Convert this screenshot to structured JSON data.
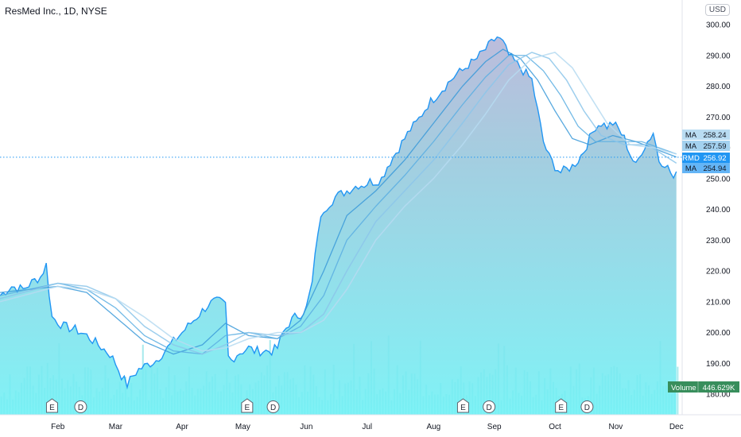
{
  "chart_data": {
    "type": "area",
    "title": "ResMed Inc., 1D, NYSE",
    "currency": "USD",
    "ylim": [
      176,
      302
    ],
    "y_ticks": [
      "180.00",
      "190.00",
      "200.00",
      "210.00",
      "220.00",
      "230.00",
      "240.00",
      "250.00",
      "260.00",
      "270.00",
      "280.00",
      "290.00",
      "300.00"
    ],
    "y_tick_values": [
      180,
      190,
      200,
      210,
      220,
      230,
      240,
      250,
      260,
      270,
      280,
      290,
      300
    ],
    "x_ticks": [
      "Feb",
      "Mar",
      "Apr",
      "May",
      "Jun",
      "Jul",
      "Aug",
      "Sep",
      "Oct",
      "Nov",
      "Dec"
    ],
    "x_tick_index": [
      20,
      40,
      63,
      84,
      106,
      127,
      150,
      171,
      192,
      213,
      234
    ],
    "n_days": 236,
    "price_knots": [
      [
        0,
        212
      ],
      [
        4,
        215
      ],
      [
        8,
        214
      ],
      [
        12,
        217
      ],
      [
        14,
        218
      ],
      [
        16,
        222
      ],
      [
        17,
        213
      ],
      [
        18,
        205
      ],
      [
        22,
        202
      ],
      [
        26,
        201
      ],
      [
        30,
        199
      ],
      [
        34,
        196
      ],
      [
        38,
        193
      ],
      [
        40,
        190
      ],
      [
        42,
        186
      ],
      [
        44,
        183
      ],
      [
        46,
        186
      ],
      [
        48,
        188
      ],
      [
        50,
        189
      ],
      [
        52,
        190
      ],
      [
        54,
        191
      ],
      [
        56,
        193
      ],
      [
        58,
        195
      ],
      [
        60,
        197
      ],
      [
        62,
        199
      ],
      [
        64,
        201
      ],
      [
        66,
        203
      ],
      [
        68,
        205
      ],
      [
        70,
        207
      ],
      [
        72,
        209
      ],
      [
        74,
        210
      ],
      [
        76,
        210
      ],
      [
        78,
        209
      ],
      [
        79,
        192
      ],
      [
        80,
        191
      ],
      [
        82,
        193
      ],
      [
        84,
        194
      ],
      [
        86,
        195
      ],
      [
        88,
        194
      ],
      [
        90,
        194
      ],
      [
        92,
        194
      ],
      [
        94,
        194
      ],
      [
        96,
        195
      ],
      [
        98,
        200
      ],
      [
        100,
        203
      ],
      [
        102,
        205
      ],
      [
        104,
        206
      ],
      [
        106,
        208
      ],
      [
        108,
        216
      ],
      [
        110,
        233
      ],
      [
        112,
        240
      ],
      [
        114,
        242
      ],
      [
        116,
        244
      ],
      [
        118,
        245
      ],
      [
        120,
        246
      ],
      [
        122,
        247
      ],
      [
        124,
        248
      ],
      [
        126,
        248
      ],
      [
        128,
        249
      ],
      [
        130,
        249
      ],
      [
        132,
        250
      ],
      [
        134,
        254
      ],
      [
        136,
        257
      ],
      [
        138,
        260
      ],
      [
        140,
        263
      ],
      [
        142,
        266
      ],
      [
        144,
        268
      ],
      [
        146,
        271
      ],
      [
        148,
        274
      ],
      [
        150,
        276
      ],
      [
        152,
        278
      ],
      [
        154,
        280
      ],
      [
        156,
        282
      ],
      [
        158,
        284
      ],
      [
        160,
        285
      ],
      [
        162,
        287
      ],
      [
        164,
        288
      ],
      [
        166,
        290
      ],
      [
        168,
        292
      ],
      [
        170,
        294
      ],
      [
        172,
        296
      ],
      [
        174,
        294
      ],
      [
        176,
        290
      ],
      [
        178,
        288
      ],
      [
        180,
        286
      ],
      [
        182,
        284
      ],
      [
        184,
        282
      ],
      [
        186,
        272
      ],
      [
        188,
        262
      ],
      [
        190,
        257
      ],
      [
        192,
        254
      ],
      [
        194,
        252
      ],
      [
        196,
        253
      ],
      [
        198,
        254
      ],
      [
        200,
        256
      ],
      [
        202,
        259
      ],
      [
        204,
        263
      ],
      [
        206,
        267
      ],
      [
        208,
        268
      ],
      [
        210,
        267
      ],
      [
        212,
        268
      ],
      [
        214,
        266
      ],
      [
        216,
        263
      ],
      [
        218,
        258
      ],
      [
        220,
        254
      ],
      [
        222,
        259
      ],
      [
        224,
        262
      ],
      [
        226,
        265
      ],
      [
        228,
        256
      ],
      [
        230,
        255
      ],
      [
        232,
        252
      ],
      [
        233,
        250
      ],
      [
        234,
        251
      ]
    ],
    "ma_knots": [
      [
        [
          0,
          213
        ],
        [
          20,
          215
        ],
        [
          30,
          213
        ],
        [
          40,
          205
        ],
        [
          50,
          197
        ],
        [
          60,
          193
        ],
        [
          70,
          196
        ],
        [
          78,
          203
        ],
        [
          86,
          199
        ],
        [
          96,
          198
        ],
        [
          104,
          204
        ],
        [
          112,
          220
        ],
        [
          120,
          238
        ],
        [
          130,
          246
        ],
        [
          140,
          256
        ],
        [
          150,
          268
        ],
        [
          160,
          280
        ],
        [
          168,
          288
        ],
        [
          174,
          292
        ],
        [
          180,
          289
        ],
        [
          186,
          282
        ],
        [
          192,
          272
        ],
        [
          198,
          263
        ],
        [
          204,
          261
        ],
        [
          212,
          264
        ],
        [
          220,
          262
        ],
        [
          234,
          257
        ]
      ],
      [
        [
          0,
          212
        ],
        [
          20,
          216
        ],
        [
          30,
          214
        ],
        [
          40,
          208
        ],
        [
          50,
          199
        ],
        [
          60,
          194
        ],
        [
          70,
          193
        ],
        [
          78,
          199
        ],
        [
          86,
          200
        ],
        [
          96,
          198
        ],
        [
          104,
          202
        ],
        [
          112,
          212
        ],
        [
          120,
          230
        ],
        [
          130,
          241
        ],
        [
          140,
          251
        ],
        [
          150,
          262
        ],
        [
          160,
          274
        ],
        [
          168,
          283
        ],
        [
          176,
          290
        ],
        [
          182,
          290
        ],
        [
          188,
          285
        ],
        [
          194,
          277
        ],
        [
          200,
          267
        ],
        [
          206,
          262
        ],
        [
          214,
          262
        ],
        [
          222,
          262
        ],
        [
          234,
          258
        ]
      ],
      [
        [
          0,
          211
        ],
        [
          20,
          216
        ],
        [
          30,
          215
        ],
        [
          40,
          211
        ],
        [
          50,
          202
        ],
        [
          60,
          196
        ],
        [
          70,
          193
        ],
        [
          78,
          196
        ],
        [
          86,
          200
        ],
        [
          96,
          199
        ],
        [
          104,
          200
        ],
        [
          112,
          206
        ],
        [
          120,
          220
        ],
        [
          130,
          236
        ],
        [
          140,
          246
        ],
        [
          150,
          256
        ],
        [
          160,
          268
        ],
        [
          168,
          278
        ],
        [
          176,
          287
        ],
        [
          184,
          291
        ],
        [
          190,
          289
        ],
        [
          196,
          282
        ],
        [
          202,
          272
        ],
        [
          208,
          264
        ],
        [
          216,
          261
        ],
        [
          224,
          261
        ],
        [
          234,
          255
        ]
      ],
      [
        [
          0,
          210
        ],
        [
          20,
          215
        ],
        [
          30,
          214
        ],
        [
          40,
          211
        ],
        [
          50,
          205
        ],
        [
          60,
          198
        ],
        [
          70,
          194
        ],
        [
          78,
          195
        ],
        [
          86,
          198
        ],
        [
          96,
          200
        ],
        [
          104,
          200
        ],
        [
          112,
          204
        ],
        [
          120,
          214
        ],
        [
          130,
          230
        ],
        [
          140,
          241
        ],
        [
          150,
          250
        ],
        [
          160,
          261
        ],
        [
          168,
          271
        ],
        [
          176,
          282
        ],
        [
          184,
          289
        ],
        [
          192,
          291
        ],
        [
          198,
          286
        ],
        [
          204,
          277
        ],
        [
          210,
          268
        ],
        [
          218,
          261
        ],
        [
          226,
          260
        ],
        [
          234,
          258
        ]
      ]
    ],
    "volume_seed": 7,
    "tags": [
      {
        "name": "MA",
        "value": "258.24",
        "price": 258.24,
        "color": "#b9dcf2"
      },
      {
        "name": "MA",
        "value": "257.59",
        "price": 257.59,
        "color": "#a3d1ef"
      },
      {
        "name": "RMD",
        "value": "256.92",
        "price": 256.92,
        "color": "#2196f3"
      },
      {
        "name": "MA",
        "value": "254.94",
        "price": 254.94,
        "color": "#64b5f6"
      }
    ],
    "current_price": 256.92,
    "volume_label": "Volume",
    "volume_value": "446.629K",
    "events": [
      {
        "type": "E",
        "index": 20
      },
      {
        "type": "D",
        "index": 31
      },
      {
        "type": "E",
        "index": 95
      },
      {
        "type": "D",
        "index": 105
      },
      {
        "type": "E",
        "index": 178
      },
      {
        "type": "D",
        "index": 188
      },
      {
        "type": "E",
        "index": 249
      },
      {
        "type": "D",
        "index": 259
      }
    ],
    "grid": false,
    "colors": {
      "line": "#2196f3",
      "fill_top": "#a9c6e4",
      "fill_bottom": "#6ff0f4",
      "axis_text": "#131722",
      "volume_badge": "#388e5c"
    }
  }
}
